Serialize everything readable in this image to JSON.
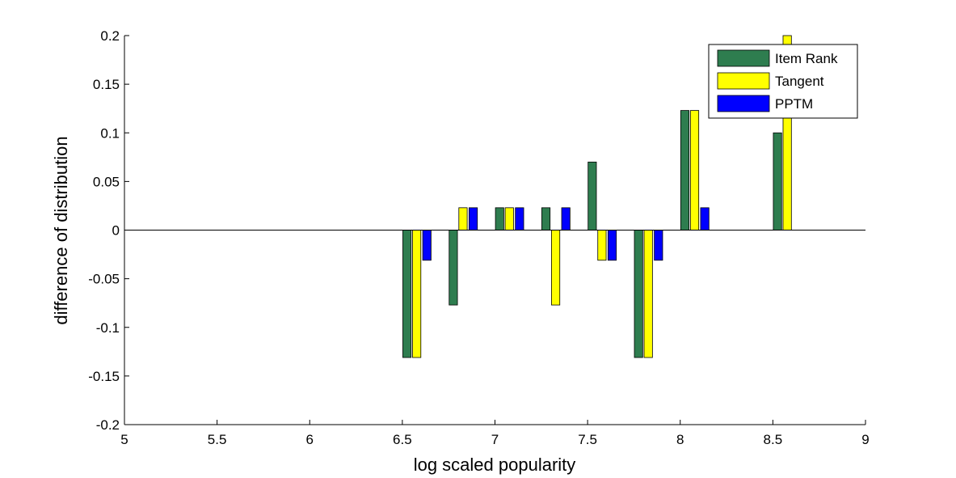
{
  "chart_data": {
    "type": "bar",
    "title": "",
    "xlabel": "log scaled popularity",
    "ylabel": "difference of distribution",
    "xlim": [
      5,
      9
    ],
    "ylim": [
      -0.2,
      0.2
    ],
    "x_ticks": [
      5,
      5.5,
      6,
      6.5,
      7,
      7.5,
      8,
      8.5,
      9
    ],
    "x_tick_labels": [
      "5",
      "5.5",
      "6",
      "6.5",
      "7",
      "7.5",
      "8",
      "8.5",
      "9"
    ],
    "y_ticks": [
      -0.2,
      -0.15,
      -0.1,
      -0.05,
      0,
      0.05,
      0.1,
      0.15,
      0.2
    ],
    "y_tick_labels": [
      "-0.2",
      "-0.15",
      "-0.1",
      "-0.05",
      "0",
      "0.05",
      "0.1",
      "0.15",
      "0.2"
    ],
    "grid": false,
    "legend_position": "top-right",
    "categories": [
      6.625,
      6.875,
      7.125,
      7.375,
      7.625,
      7.875,
      8.125,
      8.625
    ],
    "series": [
      {
        "name": "Item Rank",
        "color": "#2e7d4f",
        "values": [
          -0.131,
          -0.077,
          0.023,
          0.023,
          0.07,
          -0.131,
          0.123,
          0.1
        ]
      },
      {
        "name": "Tangent",
        "color": "#ffff00",
        "values": [
          -0.131,
          0.023,
          0.023,
          -0.077,
          -0.031,
          -0.131,
          0.123,
          0.2
        ]
      },
      {
        "name": "PPTM",
        "color": "#0000ff",
        "values": [
          -0.031,
          0.023,
          0.023,
          0.023,
          -0.031,
          -0.031,
          0.023,
          0
        ]
      }
    ]
  }
}
